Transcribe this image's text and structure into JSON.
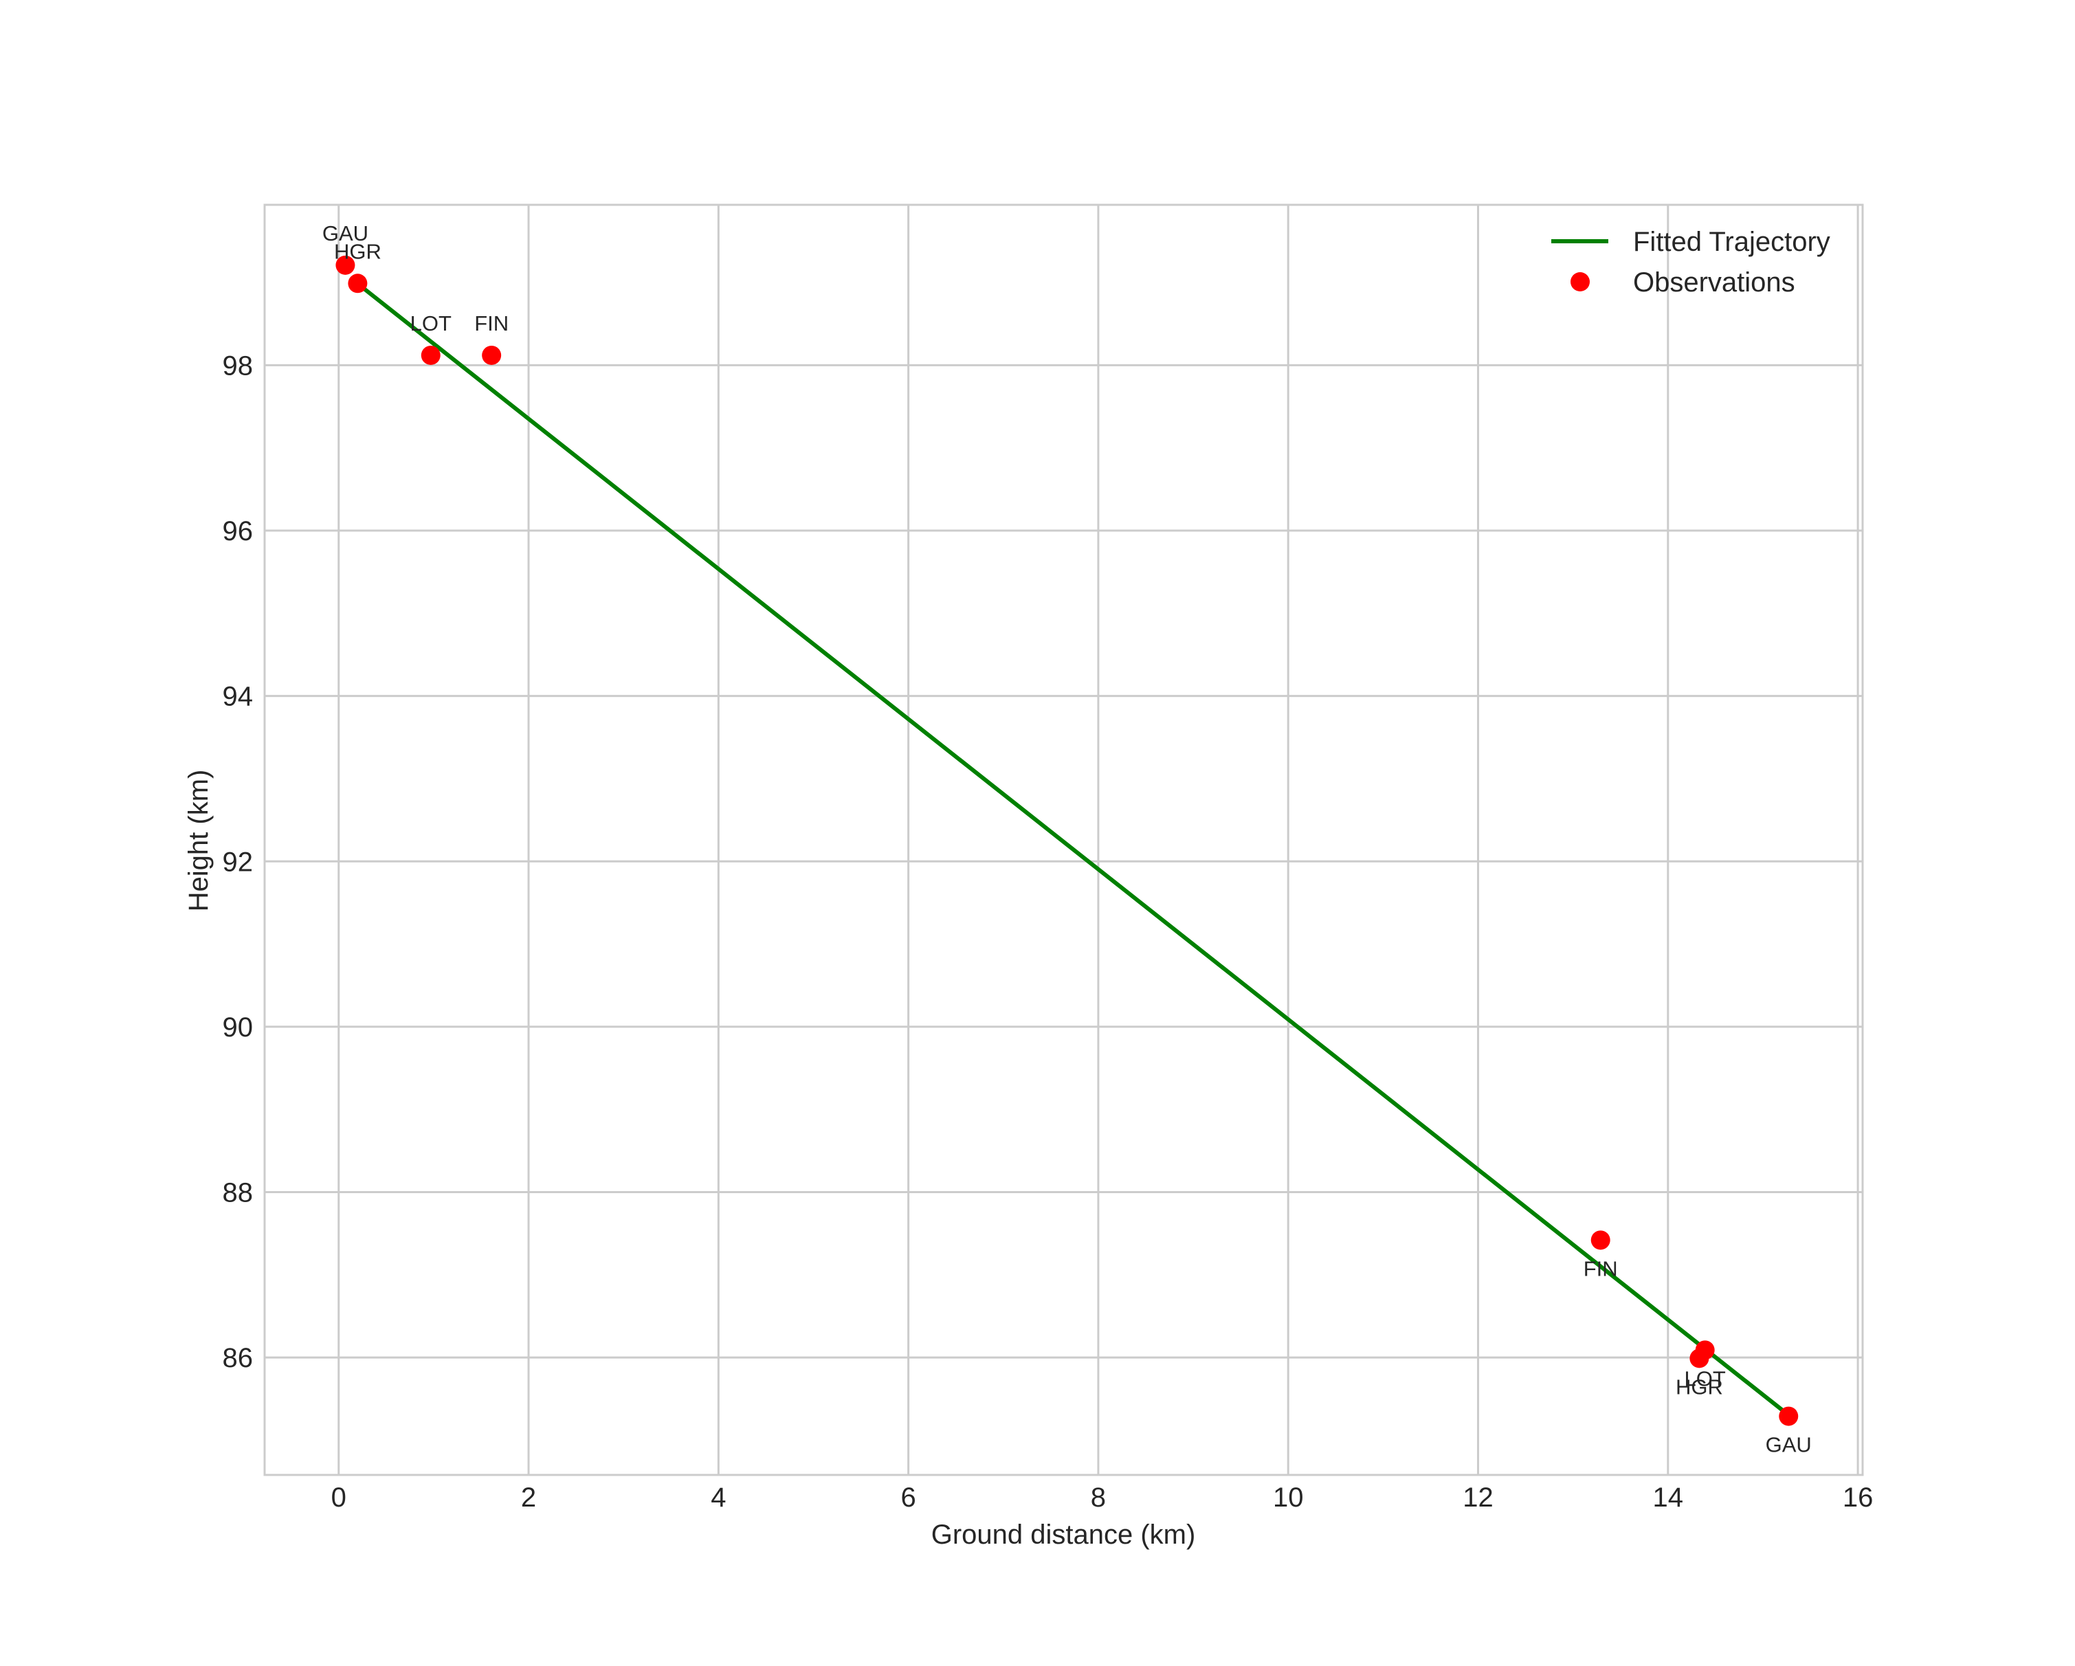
{
  "chart_data": {
    "type": "line+scatter",
    "title": "",
    "xlabel": "Ground distance (km)",
    "ylabel": "Height (km)",
    "xlim": [
      -0.78,
      16.05
    ],
    "ylim": [
      84.58,
      99.94
    ],
    "xticks": [
      0,
      2,
      4,
      6,
      8,
      10,
      12,
      14,
      16
    ],
    "yticks": [
      86,
      88,
      90,
      92,
      94,
      96,
      98
    ],
    "grid": true,
    "legend_position": "upper right",
    "legend": [
      {
        "label": "Fitted Trajectory",
        "type": "line",
        "color": "#008000"
      },
      {
        "label": "Observations",
        "type": "marker",
        "color": "#ff0000"
      }
    ],
    "series": [
      {
        "name": "Fitted Trajectory",
        "type": "line",
        "color": "#008000",
        "x": [
          0.13,
          15.22
        ],
        "y": [
          99.05,
          85.35
        ]
      },
      {
        "name": "Observations",
        "type": "scatter",
        "color": "#ff0000",
        "points": [
          {
            "label": "GAU",
            "x": 0.07,
            "y": 99.21,
            "label_pos": "above"
          },
          {
            "label": "HGR",
            "x": 0.2,
            "y": 98.99,
            "label_pos": "above"
          },
          {
            "label": "LOT",
            "x": 0.97,
            "y": 98.12,
            "label_pos": "above"
          },
          {
            "label": "FIN",
            "x": 1.61,
            "y": 98.12,
            "label_pos": "above"
          },
          {
            "label": "FIN",
            "x": 13.29,
            "y": 87.42,
            "label_pos": "below"
          },
          {
            "label": "LOT",
            "x": 14.39,
            "y": 86.09,
            "label_pos": "below"
          },
          {
            "label": "HGR",
            "x": 14.33,
            "y": 85.99,
            "label_pos": "below"
          },
          {
            "label": "GAU",
            "x": 15.27,
            "y": 85.29,
            "label_pos": "below"
          }
        ]
      }
    ]
  },
  "figure": {
    "xlabel": "Ground distance (km)",
    "ylabel": "Height (km)",
    "legend": {
      "line_label": "Fitted Trajectory",
      "marker_label": "Observations"
    }
  },
  "colors": {
    "line": "#008000",
    "marker": "#ff0000",
    "grid": "#cccccc",
    "text": "#262626"
  }
}
